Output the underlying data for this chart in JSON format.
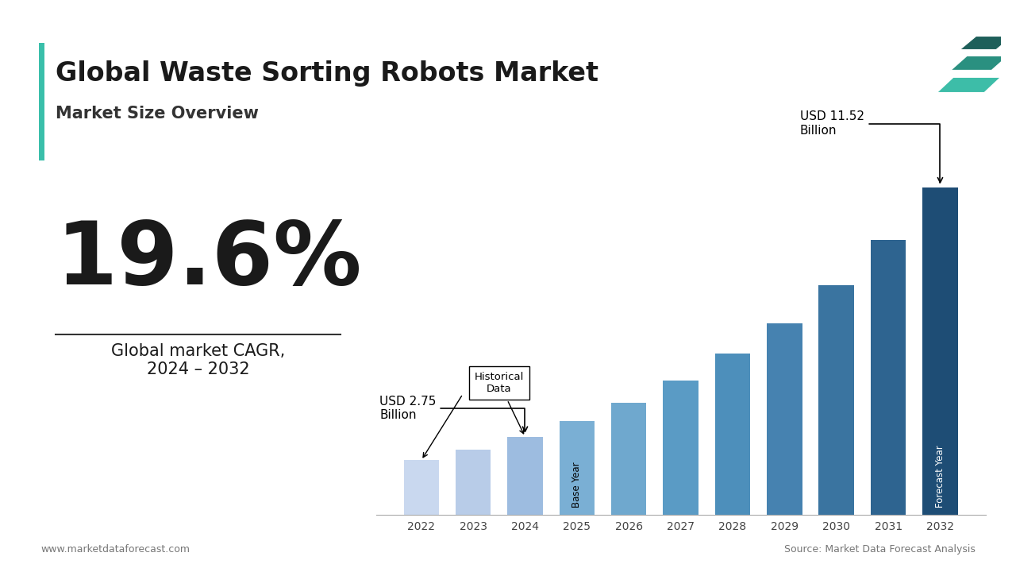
{
  "title": "Global Waste Sorting Robots Market",
  "subtitle": "Market Size Overview",
  "cagr": "19.6%",
  "cagr_label": "Global market CAGR,\n2024 – 2032",
  "years": [
    2022,
    2023,
    2024,
    2025,
    2026,
    2027,
    2028,
    2029,
    2030,
    2031,
    2032
  ],
  "values": [
    1.92,
    2.3,
    2.75,
    3.3,
    3.95,
    4.73,
    5.67,
    6.73,
    8.07,
    9.67,
    11.52
  ],
  "bar_colors": [
    "#c9d8ef",
    "#b8cce8",
    "#9dbce0",
    "#7aafd4",
    "#6fa8ce",
    "#5a9bc5",
    "#4d8fbb",
    "#4682b0",
    "#3a74a0",
    "#2e6490",
    "#1e4d75"
  ],
  "annotation_2024": "USD 2.75\nBillion",
  "annotation_2032": "USD 11.52\nBillion",
  "historical_label": "Historical\nData",
  "base_year_label": "Base Year",
  "forecast_year_label": "Forecast Year",
  "title_color": "#1a1a1a",
  "subtitle_color": "#333333",
  "cagr_color": "#1a1a1a",
  "background_color": "#ffffff",
  "footer_left": "www.marketdataforecast.com",
  "footer_right": "Source: Market Data Forecast Analysis",
  "accent_color": "#3abfaa",
  "logo_colors": [
    "#1e5f5a",
    "#2a9080",
    "#3dbda8"
  ]
}
